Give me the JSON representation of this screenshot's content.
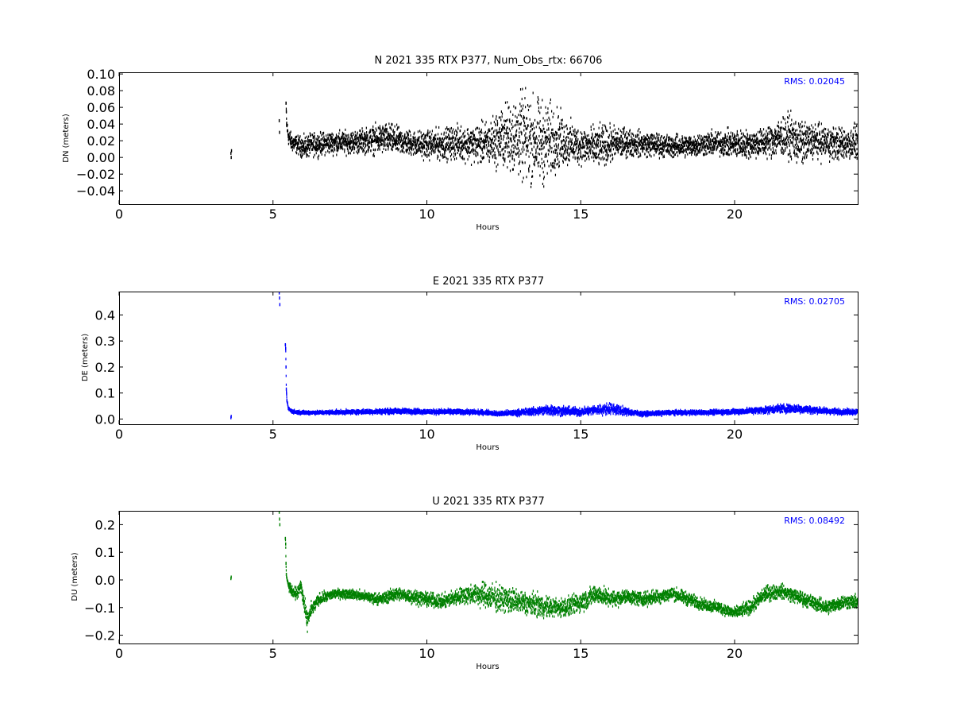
{
  "chart_data": [
    {
      "type": "scatter",
      "title": "N 2021 335 RTX  P377, Num_Obs_rtx: 66706",
      "xlabel": "Hours",
      "ylabel": "DN (meters)",
      "xlim": [
        0,
        24
      ],
      "ylim": [
        -0.056,
        0.102
      ],
      "xticks": [
        0,
        5,
        10,
        15,
        20
      ],
      "yticks": [
        -0.04,
        -0.02,
        0.0,
        0.02,
        0.04,
        0.06,
        0.08,
        0.1
      ],
      "ytick_labels": [
        "−0.04",
        "−0.02",
        "0.00",
        "0.02",
        "0.04",
        "0.06",
        "0.08",
        "0.10"
      ],
      "annotation": "RMS:  0.02045",
      "color": "#000000",
      "grid": false,
      "series": [
        {
          "x": [
            3.63,
            3.64,
            3.65,
            5.2,
            5.21,
            5.42,
            5.43,
            5.44,
            5.5,
            5.6,
            5.8,
            6.0,
            6.3,
            6.5,
            7.0,
            7.5,
            8.0,
            8.5,
            8.8,
            9.0,
            9.5,
            10.0,
            10.5,
            11.0,
            11.5,
            12.0,
            12.5,
            13.0,
            13.2,
            13.5,
            13.8,
            14.0,
            14.2,
            14.5,
            15.0,
            15.5,
            16.0,
            16.5,
            17.0,
            17.5,
            18.0,
            18.5,
            19.0,
            19.5,
            20.0,
            20.5,
            21.0,
            21.5,
            21.8,
            22.0,
            22.2,
            22.5,
            23.0,
            23.5,
            24.0
          ],
          "y": [
            0.005,
            0.0,
            0.008,
            0.044,
            0.03,
            0.065,
            0.055,
            0.04,
            0.025,
            0.018,
            0.015,
            0.012,
            0.015,
            0.016,
            0.018,
            0.018,
            0.02,
            0.022,
            0.022,
            0.02,
            0.017,
            0.015,
            0.016,
            0.018,
            0.016,
            0.017,
            0.025,
            0.025,
            0.023,
            0.02,
            0.018,
            0.02,
            0.022,
            0.018,
            0.014,
            0.012,
            0.016,
            0.018,
            0.016,
            0.015,
            0.013,
            0.014,
            0.016,
            0.017,
            0.016,
            0.016,
            0.018,
            0.024,
            0.025,
            0.02,
            0.016,
            0.02,
            0.018,
            0.016,
            0.018
          ],
          "spread": [
            0.004,
            0.004,
            0.004,
            0.006,
            0.006,
            0.006,
            0.006,
            0.01,
            0.012,
            0.013,
            0.013,
            0.016,
            0.016,
            0.016,
            0.016,
            0.016,
            0.018,
            0.022,
            0.022,
            0.02,
            0.018,
            0.02,
            0.022,
            0.024,
            0.026,
            0.032,
            0.045,
            0.06,
            0.065,
            0.062,
            0.06,
            0.055,
            0.045,
            0.035,
            0.026,
            0.03,
            0.026,
            0.02,
            0.018,
            0.017,
            0.016,
            0.016,
            0.017,
            0.018,
            0.02,
            0.02,
            0.022,
            0.028,
            0.03,
            0.034,
            0.03,
            0.026,
            0.024,
            0.024,
            0.024
          ]
        }
      ]
    },
    {
      "type": "scatter",
      "title": "E 2021 335 RTX  P377",
      "xlabel": "Hours",
      "ylabel": "DE (meters)",
      "xlim": [
        0,
        24
      ],
      "ylim": [
        -0.02,
        0.49
      ],
      "xticks": [
        0,
        5,
        10,
        15,
        20
      ],
      "yticks": [
        0.0,
        0.1,
        0.2,
        0.3,
        0.4
      ],
      "ytick_labels": [
        "0.0",
        "0.1",
        "0.2",
        "0.3",
        "0.4"
      ],
      "annotation": "RMS:  0.02705",
      "color": "#0000ff",
      "grid": false,
      "series": [
        {
          "x": [
            3.63,
            3.64,
            5.2,
            5.21,
            5.22,
            5.4,
            5.41,
            5.42,
            5.43,
            5.44,
            5.45,
            5.5,
            5.6,
            5.8,
            6.0,
            6.5,
            7.0,
            8.0,
            9.0,
            9.5,
            10.0,
            11.0,
            12.0,
            12.3,
            13.0,
            13.5,
            14.0,
            14.5,
            15.0,
            15.5,
            16.0,
            16.5,
            17.0,
            17.5,
            18.0,
            19.0,
            20.0,
            21.0,
            21.5,
            22.0,
            22.5,
            23.0,
            23.5,
            24.0
          ],
          "y": [
            0.005,
            0.01,
            0.485,
            0.465,
            0.44,
            0.285,
            0.27,
            0.2,
            0.115,
            0.095,
            0.07,
            0.04,
            0.03,
            0.026,
            0.025,
            0.025,
            0.026,
            0.028,
            0.03,
            0.03,
            0.028,
            0.028,
            0.025,
            0.02,
            0.025,
            0.03,
            0.035,
            0.03,
            0.028,
            0.035,
            0.04,
            0.028,
            0.02,
            0.022,
            0.025,
            0.025,
            0.028,
            0.035,
            0.04,
            0.04,
            0.035,
            0.03,
            0.028,
            0.028
          ],
          "spread": [
            0.004,
            0.004,
            0.006,
            0.006,
            0.006,
            0.006,
            0.006,
            0.004,
            0.004,
            0.006,
            0.006,
            0.008,
            0.008,
            0.008,
            0.008,
            0.008,
            0.009,
            0.01,
            0.012,
            0.012,
            0.011,
            0.011,
            0.01,
            0.01,
            0.014,
            0.018,
            0.024,
            0.02,
            0.018,
            0.022,
            0.026,
            0.016,
            0.01,
            0.01,
            0.01,
            0.01,
            0.012,
            0.016,
            0.02,
            0.02,
            0.016,
            0.014,
            0.012,
            0.012
          ]
        }
      ]
    },
    {
      "type": "scatter",
      "title": "U 2021 335 RTX  P377",
      "xlabel": "Hours",
      "ylabel": "DU (meters)",
      "xlim": [
        0,
        24
      ],
      "ylim": [
        -0.23,
        0.25
      ],
      "xticks": [
        0,
        5,
        10,
        15,
        20
      ],
      "yticks": [
        -0.2,
        -0.1,
        0.0,
        0.1,
        0.2
      ],
      "ytick_labels": [
        "−0.2",
        "−0.1",
        "0.0",
        "0.1",
        "0.2"
      ],
      "annotation": "RMS:  0.08492",
      "color": "#008000",
      "grid": false,
      "series": [
        {
          "x": [
            3.63,
            3.64,
            5.2,
            5.21,
            5.22,
            5.4,
            5.41,
            5.42,
            5.43,
            5.5,
            5.6,
            5.8,
            5.9,
            6.0,
            6.1,
            6.2,
            6.3,
            6.5,
            7.0,
            7.5,
            8.0,
            8.5,
            9.0,
            9.5,
            10.0,
            10.5,
            11.0,
            11.5,
            12.0,
            12.5,
            13.0,
            13.5,
            14.0,
            14.5,
            15.0,
            15.5,
            16.0,
            16.5,
            17.0,
            17.5,
            18.0,
            18.5,
            19.0,
            19.5,
            20.0,
            20.5,
            21.0,
            21.5,
            22.0,
            22.5,
            23.0,
            23.5,
            24.0
          ],
          "y": [
            0.005,
            0.01,
            0.245,
            0.22,
            0.2,
            0.15,
            0.13,
            0.06,
            0.02,
            -0.02,
            -0.04,
            -0.05,
            -0.02,
            -0.08,
            -0.15,
            -0.12,
            -0.1,
            -0.07,
            -0.05,
            -0.05,
            -0.06,
            -0.07,
            -0.05,
            -0.06,
            -0.07,
            -0.08,
            -0.06,
            -0.05,
            -0.06,
            -0.07,
            -0.08,
            -0.09,
            -0.1,
            -0.1,
            -0.08,
            -0.05,
            -0.07,
            -0.06,
            -0.07,
            -0.06,
            -0.05,
            -0.07,
            -0.09,
            -0.1,
            -0.12,
            -0.1,
            -0.05,
            -0.04,
            -0.06,
            -0.08,
            -0.1,
            -0.08,
            -0.08
          ],
          "spread": [
            0.005,
            0.005,
            0.006,
            0.006,
            0.006,
            0.006,
            0.006,
            0.006,
            0.01,
            0.02,
            0.02,
            0.03,
            0.04,
            0.04,
            0.04,
            0.04,
            0.03,
            0.025,
            0.02,
            0.02,
            0.022,
            0.025,
            0.028,
            0.03,
            0.03,
            0.03,
            0.035,
            0.045,
            0.06,
            0.055,
            0.05,
            0.05,
            0.045,
            0.04,
            0.045,
            0.04,
            0.035,
            0.03,
            0.03,
            0.03,
            0.03,
            0.028,
            0.025,
            0.025,
            0.025,
            0.03,
            0.035,
            0.03,
            0.03,
            0.03,
            0.03,
            0.03,
            0.03
          ]
        }
      ]
    }
  ]
}
